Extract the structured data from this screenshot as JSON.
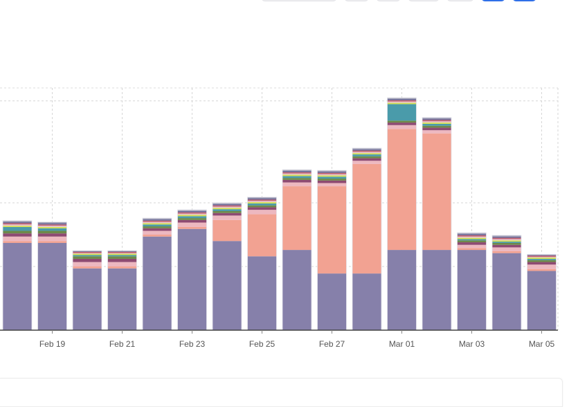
{
  "toolbar": {
    "buttons": [
      {
        "name": "date-range-button",
        "style": "secondary"
      },
      {
        "name": "toolbar-button-2",
        "style": "secondary"
      },
      {
        "name": "toolbar-button-3",
        "style": "secondary"
      },
      {
        "name": "toolbar-button-4",
        "style": "secondary"
      },
      {
        "name": "toolbar-button-5",
        "style": "secondary"
      },
      {
        "name": "toolbar-button-6",
        "style": "primary"
      },
      {
        "name": "toolbar-button-7",
        "style": "primary"
      }
    ]
  },
  "chart_data": {
    "type": "bar",
    "stacked": true,
    "title": "",
    "xlabel": "",
    "ylabel": "",
    "grid": true,
    "x_tick_labels": [
      "Feb 19",
      "Feb 21",
      "Feb 23",
      "Feb 25",
      "Feb 27",
      "Mar 01",
      "Mar 03",
      "Mar 05"
    ],
    "categories": [
      "Feb 18",
      "Feb 19",
      "Feb 20",
      "Feb 21",
      "Feb 22",
      "Feb 23",
      "Feb 24",
      "Feb 25",
      "Feb 26",
      "Feb 27",
      "Feb 28",
      "Mar 01",
      "Mar 02",
      "Mar 03",
      "Mar 04",
      "Mar 05"
    ],
    "ylim": [
      0,
      3.8
    ],
    "y_gridlines": [
      1,
      2,
      3.6
    ],
    "series": [
      {
        "name": "series-1",
        "color": "#8680AA",
        "values": [
          1.37,
          1.37,
          0.97,
          0.97,
          1.47,
          1.59,
          1.4,
          1.16,
          1.26,
          0.89,
          0.89,
          1.26,
          1.26,
          1.26,
          1.21,
          0.93
        ]
      },
      {
        "name": "series-2",
        "color": "#F2A292",
        "values": [
          0.03,
          0.03,
          0.03,
          0.03,
          0.03,
          0.03,
          0.33,
          0.66,
          1.0,
          1.37,
          1.72,
          1.9,
          1.83,
          0.03,
          0.03,
          0.03
        ]
      },
      {
        "name": "series-3",
        "color": "#EDB8C0",
        "values": [
          0.07,
          0.07,
          0.07,
          0.07,
          0.06,
          0.07,
          0.07,
          0.07,
          0.06,
          0.05,
          0.05,
          0.06,
          0.05,
          0.05,
          0.06,
          0.07
        ]
      },
      {
        "name": "series-4",
        "color": "#8E4A72",
        "values": [
          0.05,
          0.05,
          0.05,
          0.05,
          0.04,
          0.04,
          0.04,
          0.04,
          0.04,
          0.04,
          0.04,
          0.04,
          0.04,
          0.04,
          0.04,
          0.04
        ]
      },
      {
        "name": "series-5",
        "color": "#6D8A4A",
        "values": [
          0.04,
          0.04,
          0.04,
          0.04,
          0.03,
          0.03,
          0.03,
          0.03,
          0.03,
          0.03,
          0.03,
          0.03,
          0.03,
          0.03,
          0.03,
          0.03
        ]
      },
      {
        "name": "series-6",
        "color": "#4A9BAA",
        "values": [
          0.06,
          0.04,
          0.02,
          0.02,
          0.03,
          0.03,
          0.03,
          0.03,
          0.03,
          0.03,
          0.03,
          0.26,
          0.03,
          0.02,
          0.02,
          0.02
        ]
      },
      {
        "name": "series-7",
        "color": "#D4E050",
        "values": [
          0.02,
          0.02,
          0.02,
          0.02,
          0.02,
          0.02,
          0.02,
          0.02,
          0.02,
          0.02,
          0.02,
          0.02,
          0.02,
          0.02,
          0.02,
          0.02
        ]
      },
      {
        "name": "series-8",
        "color": "#E8C4CC",
        "values": [
          0.02,
          0.02,
          0.01,
          0.01,
          0.02,
          0.02,
          0.02,
          0.02,
          0.02,
          0.02,
          0.02,
          0.02,
          0.02,
          0.02,
          0.02,
          0.01
        ]
      },
      {
        "name": "series-9",
        "color": "#C06070",
        "values": [
          0.02,
          0.02,
          0.02,
          0.02,
          0.02,
          0.02,
          0.02,
          0.02,
          0.02,
          0.02,
          0.02,
          0.02,
          0.02,
          0.02,
          0.02,
          0.02
        ]
      },
      {
        "name": "series-10",
        "color": "#6E6A96",
        "values": [
          0.02,
          0.02,
          0.01,
          0.01,
          0.02,
          0.02,
          0.02,
          0.02,
          0.02,
          0.02,
          0.02,
          0.02,
          0.02,
          0.02,
          0.02,
          0.01
        ]
      },
      {
        "name": "series-11",
        "color": "#A8A8BC",
        "values": [
          0.02,
          0.02,
          0.01,
          0.01,
          0.02,
          0.02,
          0.02,
          0.02,
          0.02,
          0.02,
          0.02,
          0.02,
          0.02,
          0.02,
          0.02,
          0.01
        ]
      }
    ]
  }
}
